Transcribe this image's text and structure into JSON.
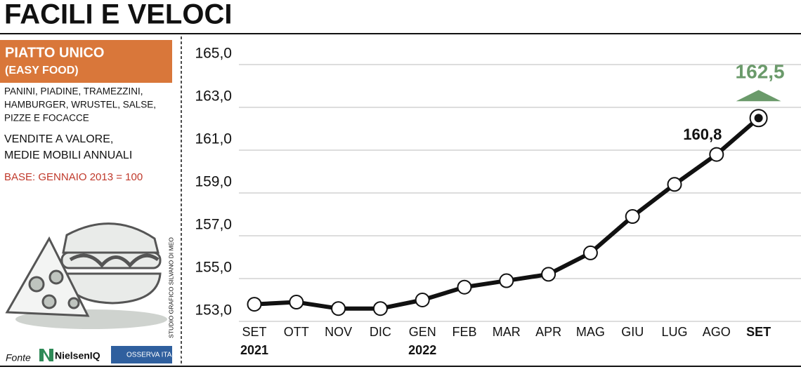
{
  "title": "FACILI E VELOCI",
  "panel": {
    "title": "PIATTO UNICO",
    "subtitle": "(EASY FOOD)",
    "description": [
      "PANINI, PIADINE, TRAMEZZINI,",
      "HAMBURGER, WRUSTEL, SALSE,",
      "PIZZE E FOCACCE"
    ],
    "measure": [
      "VENDITE A VALORE,",
      "MEDIE MOBILI ANNUALI"
    ],
    "base": "BASE: GENNAIO 2013 = 100"
  },
  "credit": "STUDIO GRAFICO SILVANO DI MEO",
  "source": {
    "label": "Fonte",
    "logos": [
      "NielsenIQ",
      "OSSERVA ITALIA"
    ]
  },
  "chart_data": {
    "type": "line",
    "categories": [
      "SET",
      "OTT",
      "NOV",
      "DIC",
      "GEN",
      "FEB",
      "MAR",
      "APR",
      "MAG",
      "GIU",
      "LUG",
      "AGO",
      "SET"
    ],
    "year_labels": [
      "2021",
      null,
      null,
      null,
      "2022",
      null,
      null,
      null,
      null,
      null,
      null,
      null,
      null
    ],
    "values": [
      153.8,
      153.9,
      153.6,
      153.6,
      154.0,
      154.6,
      154.9,
      155.2,
      156.2,
      157.9,
      159.4,
      160.8,
      162.5
    ],
    "value_labels": [
      null,
      null,
      null,
      null,
      null,
      null,
      null,
      null,
      null,
      null,
      null,
      "160,8",
      "162,5"
    ],
    "color": "#111111",
    "highlight_color": "#6a9a6a",
    "ylim": [
      153,
      165
    ],
    "yticks": [
      {
        "value": 153,
        "label": "153,0"
      },
      {
        "value": 155,
        "label": "155,0"
      },
      {
        "value": 157,
        "label": "157,0"
      },
      {
        "value": 159,
        "label": "159,0"
      },
      {
        "value": 161,
        "label": "161,0"
      },
      {
        "value": 163,
        "label": "163,0"
      },
      {
        "value": 165,
        "label": "165,0"
      }
    ],
    "grid": true
  }
}
